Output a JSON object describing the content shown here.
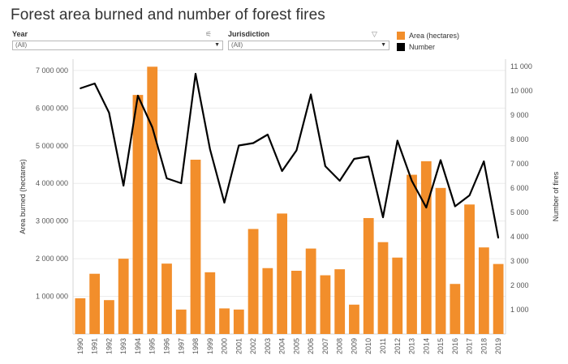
{
  "header": {
    "title": "Forest area burned and number of forest fires"
  },
  "filters": {
    "year": {
      "label": "Year",
      "value": "(All)"
    },
    "jurisdiction": {
      "label": "Jurisdiction",
      "value": "(All)"
    }
  },
  "legend": {
    "items": [
      {
        "label": "Area (hectares)",
        "color": "#f28e2b"
      },
      {
        "label": "Number",
        "color": "#000000"
      }
    ]
  },
  "chart_data": {
    "type": "bar",
    "categories": [
      "1990",
      "1991",
      "1992",
      "1993",
      "1994",
      "1995",
      "1996",
      "1997",
      "1998",
      "1999",
      "2000",
      "2001",
      "2002",
      "2003",
      "2004",
      "2005",
      "2006",
      "2007",
      "2008",
      "2009",
      "2010",
      "2011",
      "2012",
      "2013",
      "2014",
      "2015",
      "2016",
      "2017",
      "2018",
      "2019"
    ],
    "series": [
      {
        "name": "Area (hectares)",
        "type": "bar",
        "axis": "left",
        "color": "#f28e2b",
        "values": [
          950000,
          1600000,
          900000,
          2000000,
          6350000,
          7100000,
          1870000,
          650000,
          4630000,
          1640000,
          680000,
          650000,
          2790000,
          1750000,
          3200000,
          1680000,
          2270000,
          1560000,
          1720000,
          780000,
          3080000,
          2440000,
          2030000,
          4230000,
          4590000,
          3880000,
          1330000,
          3440000,
          2300000,
          1860000
        ]
      },
      {
        "name": "Number",
        "type": "line",
        "axis": "right",
        "color": "#000000",
        "values": [
          10100,
          10300,
          9100,
          6100,
          9800,
          8500,
          6400,
          6200,
          10700,
          7600,
          5400,
          7750,
          7850,
          8200,
          6700,
          7550,
          9850,
          6900,
          6300,
          7200,
          7300,
          4800,
          7950,
          6300,
          5200,
          7150,
          5250,
          5700,
          7100,
          3950
        ]
      }
    ],
    "y_left": {
      "label": "Area burned (hectares)",
      "range": [
        0,
        7300000
      ],
      "ticks": [
        1000000,
        2000000,
        3000000,
        4000000,
        5000000,
        6000000,
        7000000
      ],
      "tick_labels": [
        "1 000 000",
        "2 000 000",
        "3 000 000",
        "4 000 000",
        "5 000 000",
        "6 000 000",
        "7 000 000"
      ]
    },
    "y_right": {
      "label": "Number of fires",
      "range": [
        0,
        11300
      ],
      "ticks": [
        1000,
        2000,
        3000,
        4000,
        5000,
        6000,
        7000,
        8000,
        9000,
        10000,
        11000
      ],
      "tick_labels": [
        "1 000",
        "2 000",
        "3 000",
        "4 000",
        "5 000",
        "6 000",
        "7 000",
        "8 000",
        "9 000",
        "10 000",
        "11 000"
      ]
    },
    "grid": true
  }
}
